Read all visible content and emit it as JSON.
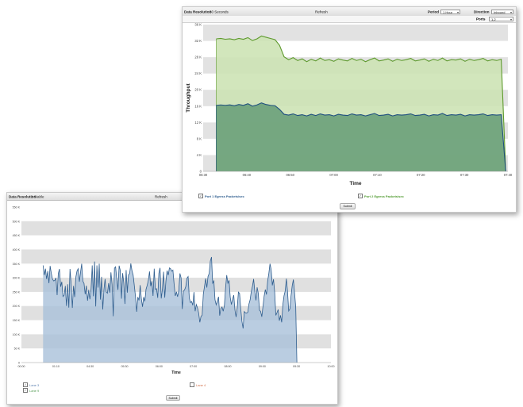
{
  "front": {
    "toolbar": {
      "resolution_label": "Data Resolution",
      "resolution_value": "1 Stable",
      "center_label": "Refresh"
    },
    "submit_label": "Submit",
    "legend": [
      {
        "label": "Lane 3",
        "color": "#5a7fb0",
        "checked": true
      },
      {
        "label": "Lane 4",
        "color": "#d2704a",
        "checked": false
      },
      {
        "label": "Lane 9",
        "color": "#4f9a4f",
        "checked": true
      }
    ],
    "chart_data": {
      "type": "area",
      "title": "",
      "xlabel": "Time",
      "ylabel": "",
      "x_ticks": [
        "00:00",
        "01:10",
        "04:30",
        "05:30",
        "06:00",
        "07:00",
        "08:00",
        "09:00",
        "09:30",
        "10:00"
      ],
      "y_ticks": [
        "0",
        "50 K",
        "100 K",
        "150 K",
        "200 K",
        "250 K",
        "300 K",
        "350 K",
        "400 K",
        "450 K",
        "500 K",
        "550 K"
      ],
      "ylim": [
        0,
        560
      ],
      "grid": "alternating bands",
      "series": [
        {
          "name": "Lane 3",
          "color": "#2e5d8e",
          "fill": "#a9c0da",
          "x_start": 7,
          "x_end": 89,
          "values": [
            350,
            315,
            338,
            301,
            330,
            286,
            348,
            322,
            301,
            294,
            296,
            305,
            243,
            321,
            337,
            273,
            291,
            238,
            243,
            276,
            204,
            282,
            198,
            337,
            283,
            197,
            276,
            236,
            308,
            330,
            338,
            291,
            325,
            356,
            293,
            285,
            246,
            277,
            223,
            262,
            228,
            264,
            350,
            239,
            364,
            202,
            350,
            270,
            356,
            227,
            309,
            191,
            262,
            301,
            254,
            250,
            286,
            252,
            325,
            282,
            167,
            340,
            345,
            300,
            262,
            349,
            332,
            230,
            322,
            287,
            211,
            333,
            252,
            315,
            321,
            357,
            331,
            315,
            277,
            238,
            183,
            236,
            224,
            279,
            231,
            201,
            236,
            221,
            264,
            278,
            297,
            328,
            275,
            293,
            240,
            338,
            264,
            266,
            233,
            322,
            341,
            231,
            264,
            327,
            234,
            293,
            331,
            315,
            341,
            338,
            329,
            333,
            283,
            240,
            255,
            237,
            259,
            321,
            305,
            193,
            257,
            262,
            274,
            304,
            310,
            233,
            216,
            220,
            206,
            254,
            185,
            209,
            197,
            178,
            145,
            166,
            171,
            247,
            274,
            303,
            270,
            310,
            321,
            366,
            380,
            286,
            294,
            226,
            208,
            222,
            237,
            169,
            195,
            200,
            185,
            205,
            268,
            315,
            286,
            296,
            235,
            209,
            228,
            243,
            190,
            164,
            197,
            254,
            249,
            193,
            149,
            123,
            184,
            179,
            178,
            181,
            211,
            226,
            256,
            275,
            301,
            256,
            224,
            271,
            249,
            189,
            184,
            165,
            202,
            240,
            263,
            245,
            294,
            321,
            356,
            335,
            278,
            300,
            254,
            170,
            180,
            191,
            151,
            170,
            145,
            209,
            241,
            258,
            302,
            256,
            186,
            193,
            241,
            277,
            299,
            252,
            200,
            0
          ]
        }
      ]
    }
  },
  "back": {
    "toolbar": {
      "resolution_label": "Data Resolution",
      "resolution_value": "30 Seconds",
      "center_label": "Refresh",
      "period_label": "Period",
      "period_value": "1 Hour",
      "direction_label": "Direction",
      "direction_value": "Inbound",
      "ports_label": "Ports",
      "ports_value": "1,2"
    },
    "submit_label": "Submit",
    "legend": [
      {
        "label": "Port 1 Egress Packets/sec",
        "color": "#2e5d8e",
        "checked": true
      },
      {
        "label": "Port 2 Egress Packets/sec",
        "color": "#4f9a2f",
        "checked": true
      }
    ],
    "chart_data": {
      "type": "area",
      "title": "",
      "xlabel": "Time",
      "ylabel": "Throughput",
      "x_ticks": [
        "06:30",
        "06:40",
        "06:50",
        "07:00",
        "07:10",
        "07:20",
        "07:30",
        "07:40"
      ],
      "y_ticks": [
        "0",
        "4 K",
        "8 K",
        "12 K",
        "16 K",
        "20 K",
        "24 K",
        "28 K",
        "32 K",
        "36 K"
      ],
      "ylim": [
        0,
        36
      ],
      "grid": "alternating bands",
      "series": [
        {
          "name": "Port 2 Egress Packets/sec",
          "color": "#5e9a2e",
          "fill": "#cde3b5",
          "values": [
            32.5,
            32.6,
            32.4,
            32.5,
            32.3,
            32.6,
            32.4,
            32.8,
            32.1,
            32.5,
            33.2,
            32.9,
            32.6,
            32.3,
            30.9,
            28.1,
            27.4,
            27.9,
            27.2,
            27.6,
            26.9,
            27.5,
            27.1,
            27.8,
            27.2,
            27.4,
            27.0,
            27.6,
            27.3,
            27.1,
            27.7,
            27.2,
            27.5,
            26.9,
            27.4,
            27.8,
            27.1,
            27.3,
            27.6,
            27.0,
            27.5,
            27.2,
            27.4,
            27.7,
            27.1,
            27.3,
            27.6,
            27.0,
            27.5,
            27.2,
            27.8,
            27.1,
            27.4,
            27.3,
            27.6,
            27.0,
            27.5,
            27.2,
            27.4,
            27.7,
            27.1,
            27.4,
            27.2,
            27.5,
            0
          ],
          "x_start": 6.36,
          "x_end": 7.69
        },
        {
          "name": "Port 1 Egress Packets/sec",
          "color": "#1f4f7f",
          "fill": "#6aa07a",
          "values": [
            16.2,
            16.3,
            16.2,
            16.3,
            16.1,
            16.4,
            16.2,
            16.6,
            16.0,
            16.3,
            16.8,
            16.4,
            16.2,
            16.1,
            15.2,
            14.0,
            13.8,
            14.1,
            13.7,
            13.9,
            13.6,
            14.0,
            13.7,
            14.1,
            13.8,
            13.9,
            13.6,
            14.0,
            13.8,
            13.7,
            14.1,
            13.8,
            13.9,
            13.6,
            13.9,
            14.2,
            13.7,
            13.8,
            14.0,
            13.6,
            13.9,
            13.8,
            13.9,
            14.1,
            13.7,
            13.8,
            14.0,
            13.6,
            13.9,
            13.8,
            14.2,
            13.7,
            13.9,
            13.8,
            14.0,
            13.6,
            13.9,
            13.8,
            13.9,
            14.1,
            13.7,
            13.9,
            13.8,
            13.9,
            0
          ],
          "x_start": 6.36,
          "x_end": 7.69
        }
      ]
    }
  }
}
